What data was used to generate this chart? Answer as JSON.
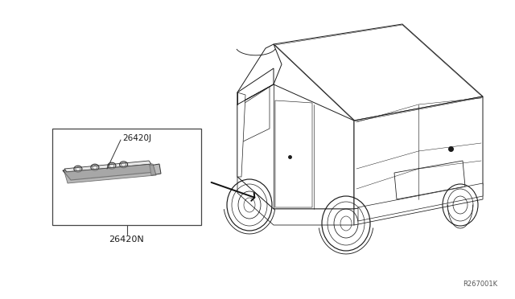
{
  "bg_color": "#ffffff",
  "ref_code": "R267001K",
  "part_box_label": "26420N",
  "part_label": "26420J",
  "font_color": "#1a1a1a",
  "line_color": "#1a1a1a",
  "lw": 0.7
}
